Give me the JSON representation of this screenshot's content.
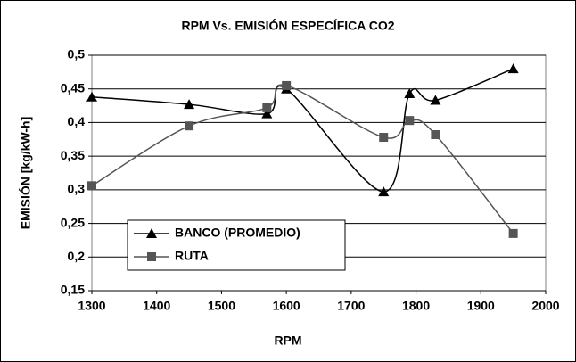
{
  "chart_data": {
    "type": "line",
    "title": "RPM Vs. EMISIÓN ESPECÍFICA CO2",
    "x_label": "RPM",
    "y_label": "EMISIÓN [kg/kW-h]",
    "x": [
      1300,
      1450,
      1570,
      1600,
      1750,
      1790,
      1830,
      1950
    ],
    "series": [
      {
        "name": "BANCO (PROMEDIO)",
        "color": "#000000",
        "marker": "triangle",
        "values": [
          0.438,
          0.427,
          0.413,
          0.45,
          0.297,
          0.443,
          0.433,
          0.48
        ]
      },
      {
        "name": "RUTA",
        "color": "#555555",
        "marker": "square",
        "values": [
          0.306,
          0.395,
          0.422,
          0.455,
          0.378,
          0.403,
          0.382,
          0.235
        ]
      }
    ],
    "xlim": [
      1300,
      2000
    ],
    "xticks": [
      1300,
      1400,
      1500,
      1600,
      1700,
      1800,
      1900,
      2000
    ],
    "ylim": [
      0.15,
      0.5
    ],
    "yticks": [
      {
        "value": 0.15,
        "label": "0,15"
      },
      {
        "value": 0.2,
        "label": "0,2"
      },
      {
        "value": 0.25,
        "label": "0,25"
      },
      {
        "value": 0.3,
        "label": "0,3"
      },
      {
        "value": 0.35,
        "label": "0,35"
      },
      {
        "value": 0.4,
        "label": "0,4"
      },
      {
        "value": 0.45,
        "label": "0,45"
      },
      {
        "value": 0.5,
        "label": "0,5"
      }
    ],
    "grid": true,
    "smooth": true
  }
}
